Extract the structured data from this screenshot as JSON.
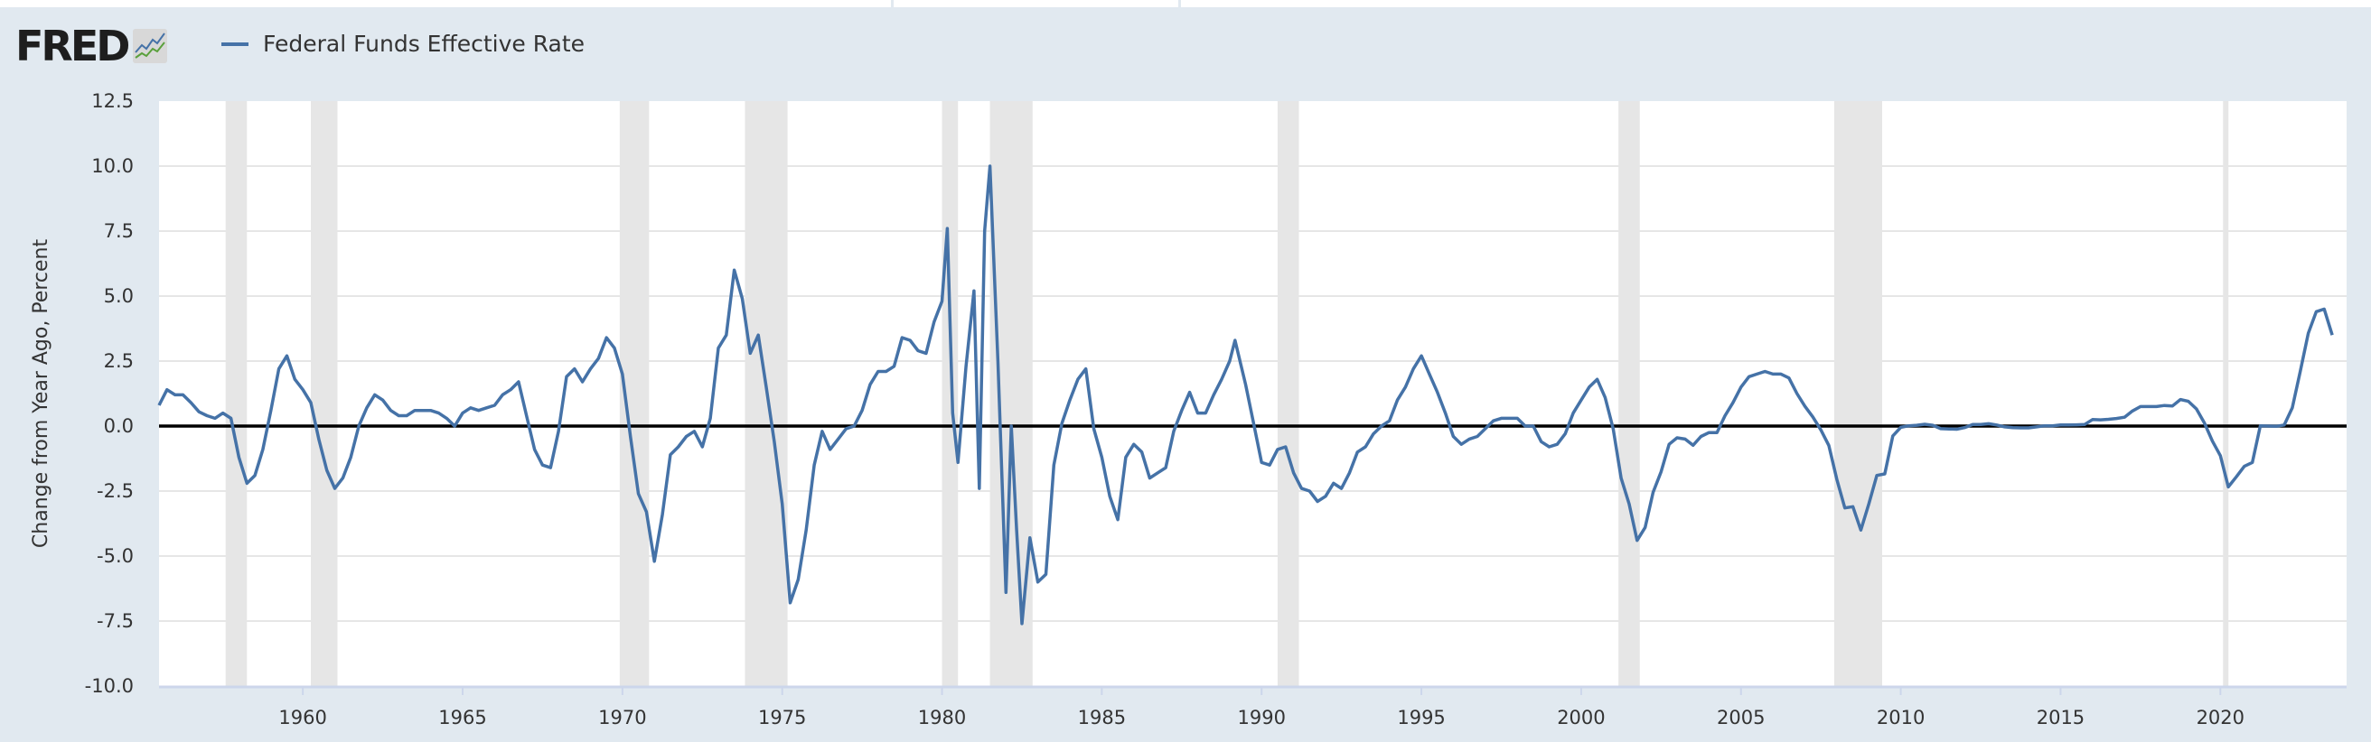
{
  "header": {
    "logo_text": "FRED",
    "legend": [
      {
        "label": "Federal Funds Effective Rate",
        "color": "#4572a7"
      }
    ]
  },
  "colors": {
    "background": "#e1e9f0",
    "plot": "#ffffff",
    "grid": "#e6e6e6",
    "recession": "#e6e6e6",
    "zero_line": "#000000",
    "series": "#4572a7"
  },
  "chart_data": {
    "type": "line",
    "title": "",
    "xlabel": "",
    "ylabel": "Change from Year Ago, Percent",
    "xlim": [
      "1955-07",
      "2023-07"
    ],
    "ylim": [
      -10,
      12.5
    ],
    "yticks": [
      "12.5",
      "10.0",
      "7.5",
      "5.0",
      "2.5",
      "0.0",
      "-2.5",
      "-5.0",
      "-7.5",
      "-10.0"
    ],
    "xticks": [
      "1960",
      "1965",
      "1970",
      "1975",
      "1980",
      "1985",
      "1990",
      "1995",
      "2000",
      "2005",
      "2010",
      "2015",
      "2020"
    ],
    "grid": true,
    "zero_line": true,
    "legend_placement": "top-left",
    "recessions": [
      [
        "1957-08",
        "1958-04"
      ],
      [
        "1960-04",
        "1961-02"
      ],
      [
        "1969-12",
        "1970-11"
      ],
      [
        "1973-11",
        "1975-03"
      ],
      [
        "1980-01",
        "1980-07"
      ],
      [
        "1981-07",
        "1982-11"
      ],
      [
        "1990-07",
        "1991-03"
      ],
      [
        "2001-03",
        "2001-11"
      ],
      [
        "2007-12",
        "2009-06"
      ],
      [
        "2020-02",
        "2020-04"
      ]
    ],
    "series": [
      {
        "name": "Federal Funds Effective Rate",
        "points": [
          [
            "1955-07",
            0.8
          ],
          [
            "1955-10",
            1.4
          ],
          [
            "1956-01",
            1.2
          ],
          [
            "1956-04",
            1.2
          ],
          [
            "1956-07",
            0.9
          ],
          [
            "1956-10",
            0.55
          ],
          [
            "1957-01",
            0.4
          ],
          [
            "1957-04",
            0.3
          ],
          [
            "1957-07",
            0.5
          ],
          [
            "1957-10",
            0.3
          ],
          [
            "1958-01",
            -1.2
          ],
          [
            "1958-04",
            -2.2
          ],
          [
            "1958-07",
            -1.9
          ],
          [
            "1958-10",
            -0.9
          ],
          [
            "1959-01",
            0.6
          ],
          [
            "1959-04",
            2.2
          ],
          [
            "1959-07",
            2.7
          ],
          [
            "1959-10",
            1.8
          ],
          [
            "1960-01",
            1.4
          ],
          [
            "1960-04",
            0.9
          ],
          [
            "1960-07",
            -0.5
          ],
          [
            "1960-10",
            -1.7
          ],
          [
            "1961-01",
            -2.4
          ],
          [
            "1961-04",
            -2.0
          ],
          [
            "1961-07",
            -1.2
          ],
          [
            "1961-10",
            0.0
          ],
          [
            "1962-01",
            0.7
          ],
          [
            "1962-04",
            1.2
          ],
          [
            "1962-07",
            1.0
          ],
          [
            "1962-10",
            0.6
          ],
          [
            "1963-01",
            0.4
          ],
          [
            "1963-04",
            0.4
          ],
          [
            "1963-07",
            0.6
          ],
          [
            "1963-10",
            0.6
          ],
          [
            "1964-01",
            0.6
          ],
          [
            "1964-04",
            0.5
          ],
          [
            "1964-07",
            0.3
          ],
          [
            "1964-10",
            0.0
          ],
          [
            "1965-01",
            0.5
          ],
          [
            "1965-04",
            0.7
          ],
          [
            "1965-07",
            0.6
          ],
          [
            "1965-10",
            0.7
          ],
          [
            "1966-01",
            0.8
          ],
          [
            "1966-04",
            1.2
          ],
          [
            "1966-07",
            1.4
          ],
          [
            "1966-10",
            1.7
          ],
          [
            "1967-01",
            0.4
          ],
          [
            "1967-04",
            -0.9
          ],
          [
            "1967-07",
            -1.5
          ],
          [
            "1967-10",
            -1.6
          ],
          [
            "1968-01",
            -0.2
          ],
          [
            "1968-04",
            1.9
          ],
          [
            "1968-07",
            2.2
          ],
          [
            "1968-10",
            1.7
          ],
          [
            "1969-01",
            2.2
          ],
          [
            "1969-04",
            2.6
          ],
          [
            "1969-07",
            3.4
          ],
          [
            "1969-10",
            3.0
          ],
          [
            "1970-01",
            2.0
          ],
          [
            "1970-04",
            -0.4
          ],
          [
            "1970-07",
            -2.6
          ],
          [
            "1970-10",
            -3.3
          ],
          [
            "1971-01",
            -5.2
          ],
          [
            "1971-04",
            -3.4
          ],
          [
            "1971-07",
            -1.1
          ],
          [
            "1971-10",
            -0.8
          ],
          [
            "1972-01",
            -0.4
          ],
          [
            "1972-04",
            -0.2
          ],
          [
            "1972-07",
            -0.8
          ],
          [
            "1972-10",
            0.3
          ],
          [
            "1973-01",
            3.0
          ],
          [
            "1973-04",
            3.5
          ],
          [
            "1973-07",
            6.0
          ],
          [
            "1973-10",
            4.9
          ],
          [
            "1974-01",
            2.8
          ],
          [
            "1974-04",
            3.5
          ],
          [
            "1974-07",
            1.5
          ],
          [
            "1974-10",
            -0.6
          ],
          [
            "1975-01",
            -3.0
          ],
          [
            "1975-04",
            -6.8
          ],
          [
            "1975-07",
            -5.9
          ],
          [
            "1975-10",
            -4.0
          ],
          [
            "1976-01",
            -1.5
          ],
          [
            "1976-04",
            -0.2
          ],
          [
            "1976-07",
            -0.9
          ],
          [
            "1976-10",
            -0.5
          ],
          [
            "1977-01",
            -0.1
          ],
          [
            "1977-04",
            0.0
          ],
          [
            "1977-07",
            0.6
          ],
          [
            "1977-10",
            1.6
          ],
          [
            "1978-01",
            2.1
          ],
          [
            "1978-04",
            2.1
          ],
          [
            "1978-07",
            2.3
          ],
          [
            "1978-10",
            3.4
          ],
          [
            "1979-01",
            3.3
          ],
          [
            "1979-04",
            2.9
          ],
          [
            "1979-07",
            2.8
          ],
          [
            "1979-10",
            4.0
          ],
          [
            "1980-01",
            4.8
          ],
          [
            "1980-03",
            7.6
          ],
          [
            "1980-05",
            0.5
          ],
          [
            "1980-07",
            -1.4
          ],
          [
            "1980-10",
            2.3
          ],
          [
            "1981-01",
            5.2
          ],
          [
            "1981-03",
            -2.4
          ],
          [
            "1981-05",
            7.5
          ],
          [
            "1981-07",
            10.0
          ],
          [
            "1981-10",
            2.5
          ],
          [
            "1982-01",
            -6.4
          ],
          [
            "1982-03",
            0.0
          ],
          [
            "1982-05",
            -4.0
          ],
          [
            "1982-07",
            -7.6
          ],
          [
            "1982-10",
            -4.3
          ],
          [
            "1983-01",
            -6.0
          ],
          [
            "1983-04",
            -5.7
          ],
          [
            "1983-07",
            -1.5
          ],
          [
            "1983-10",
            0.1
          ],
          [
            "1984-01",
            1.0
          ],
          [
            "1984-04",
            1.8
          ],
          [
            "1984-07",
            2.2
          ],
          [
            "1984-10",
            -0.1
          ],
          [
            "1985-01",
            -1.2
          ],
          [
            "1985-04",
            -2.7
          ],
          [
            "1985-07",
            -3.6
          ],
          [
            "1985-10",
            -1.2
          ],
          [
            "1986-01",
            -0.7
          ],
          [
            "1986-04",
            -1.0
          ],
          [
            "1986-07",
            -2.0
          ],
          [
            "1986-10",
            -1.8
          ],
          [
            "1987-01",
            -1.6
          ],
          [
            "1987-04",
            -0.2
          ],
          [
            "1987-07",
            0.6
          ],
          [
            "1987-10",
            1.3
          ],
          [
            "1988-01",
            0.5
          ],
          [
            "1988-04",
            0.5
          ],
          [
            "1988-07",
            1.2
          ],
          [
            "1988-10",
            1.8
          ],
          [
            "1989-01",
            2.5
          ],
          [
            "1989-03",
            3.3
          ],
          [
            "1989-07",
            1.6
          ],
          [
            "1989-10",
            0.1
          ],
          [
            "1990-01",
            -1.4
          ],
          [
            "1990-04",
            -1.5
          ],
          [
            "1990-07",
            -0.9
          ],
          [
            "1990-10",
            -0.8
          ],
          [
            "1991-01",
            -1.8
          ],
          [
            "1991-04",
            -2.4
          ],
          [
            "1991-07",
            -2.5
          ],
          [
            "1991-10",
            -2.9
          ],
          [
            "1992-01",
            -2.7
          ],
          [
            "1992-04",
            -2.2
          ],
          [
            "1992-07",
            -2.4
          ],
          [
            "1992-10",
            -1.8
          ],
          [
            "1993-01",
            -1.0
          ],
          [
            "1993-04",
            -0.8
          ],
          [
            "1993-07",
            -0.3
          ],
          [
            "1993-10",
            0.0
          ],
          [
            "1994-01",
            0.2
          ],
          [
            "1994-04",
            1.0
          ],
          [
            "1994-07",
            1.5
          ],
          [
            "1994-10",
            2.2
          ],
          [
            "1995-01",
            2.7
          ],
          [
            "1995-04",
            2.0
          ],
          [
            "1995-07",
            1.3
          ],
          [
            "1995-10",
            0.5
          ],
          [
            "1996-01",
            -0.4
          ],
          [
            "1996-04",
            -0.7
          ],
          [
            "1996-07",
            -0.5
          ],
          [
            "1996-10",
            -0.4
          ],
          [
            "1997-01",
            -0.1
          ],
          [
            "1997-04",
            0.2
          ],
          [
            "1997-07",
            0.3
          ],
          [
            "1997-10",
            0.3
          ],
          [
            "1998-01",
            0.3
          ],
          [
            "1998-04",
            0.0
          ],
          [
            "1998-07",
            0.0
          ],
          [
            "1998-10",
            -0.6
          ],
          [
            "1999-01",
            -0.8
          ],
          [
            "1999-04",
            -0.7
          ],
          [
            "1999-07",
            -0.3
          ],
          [
            "1999-10",
            0.5
          ],
          [
            "2000-01",
            1.0
          ],
          [
            "2000-04",
            1.5
          ],
          [
            "2000-07",
            1.8
          ],
          [
            "2000-10",
            1.1
          ],
          [
            "2001-01",
            -0.1
          ],
          [
            "2001-04",
            -2.0
          ],
          [
            "2001-07",
            -3.0
          ],
          [
            "2001-10",
            -4.4
          ],
          [
            "2002-01",
            -3.9
          ],
          [
            "2002-04",
            -2.55
          ],
          [
            "2002-07",
            -1.76
          ],
          [
            "2002-10",
            -0.7
          ],
          [
            "2003-01",
            -0.45
          ],
          [
            "2003-04",
            -0.5
          ],
          [
            "2003-07",
            -0.74
          ],
          [
            "2003-10",
            -0.4
          ],
          [
            "2004-01",
            -0.25
          ],
          [
            "2004-04",
            -0.25
          ],
          [
            "2004-07",
            0.4
          ],
          [
            "2004-10",
            0.9
          ],
          [
            "2005-01",
            1.5
          ],
          [
            "2005-04",
            1.9
          ],
          [
            "2005-07",
            2.0
          ],
          [
            "2005-10",
            2.1
          ],
          [
            "2006-01",
            2.0
          ],
          [
            "2006-04",
            2.0
          ],
          [
            "2006-07",
            1.85
          ],
          [
            "2006-10",
            1.25
          ],
          [
            "2007-01",
            0.76
          ],
          [
            "2007-04",
            0.35
          ],
          [
            "2007-07",
            -0.15
          ],
          [
            "2007-10",
            -0.75
          ],
          [
            "2008-01",
            -2.06
          ],
          [
            "2008-04",
            -3.15
          ],
          [
            "2008-07",
            -3.1
          ],
          [
            "2008-10",
            -4.0
          ],
          [
            "2009-01",
            -3.0
          ],
          [
            "2009-04",
            -1.9
          ],
          [
            "2009-07",
            -1.84
          ],
          [
            "2009-10",
            -0.38
          ],
          [
            "2010-01",
            -0.05
          ],
          [
            "2010-04",
            0.01
          ],
          [
            "2010-07",
            0.03
          ],
          [
            "2010-10",
            0.07
          ],
          [
            "2011-01",
            0.03
          ],
          [
            "2011-04",
            -0.1
          ],
          [
            "2011-07",
            -0.11
          ],
          [
            "2011-10",
            -0.12
          ],
          [
            "2012-01",
            -0.06
          ],
          [
            "2012-04",
            0.06
          ],
          [
            "2012-07",
            0.06
          ],
          [
            "2012-10",
            0.09
          ],
          [
            "2013-01",
            0.04
          ],
          [
            "2013-04",
            -0.03
          ],
          [
            "2013-07",
            -0.06
          ],
          [
            "2013-10",
            -0.07
          ],
          [
            "2014-01",
            -0.07
          ],
          [
            "2014-04",
            -0.03
          ],
          [
            "2014-07",
            0.01
          ],
          [
            "2014-10",
            0.01
          ],
          [
            "2015-01",
            0.04
          ],
          [
            "2015-04",
            0.04
          ],
          [
            "2015-07",
            0.05
          ],
          [
            "2015-10",
            0.06
          ],
          [
            "2016-01",
            0.25
          ],
          [
            "2016-04",
            0.24
          ],
          [
            "2016-07",
            0.26
          ],
          [
            "2016-10",
            0.29
          ],
          [
            "2017-01",
            0.34
          ],
          [
            "2017-04",
            0.58
          ],
          [
            "2017-07",
            0.75
          ],
          [
            "2017-10",
            0.75
          ],
          [
            "2018-01",
            0.75
          ],
          [
            "2018-04",
            0.79
          ],
          [
            "2018-07",
            0.77
          ],
          [
            "2018-10",
            1.02
          ],
          [
            "2019-01",
            0.95
          ],
          [
            "2019-04",
            0.66
          ],
          [
            "2019-07",
            0.12
          ],
          [
            "2019-10",
            -0.58
          ],
          [
            "2020-01",
            -1.14
          ],
          [
            "2020-04",
            -2.34
          ],
          [
            "2020-07",
            -1.95
          ],
          [
            "2020-10",
            -1.55
          ],
          [
            "2021-01",
            -1.4
          ],
          [
            "2021-04",
            0.01
          ],
          [
            "2021-07",
            0.0
          ],
          [
            "2021-10",
            -0.01
          ],
          [
            "2022-01",
            0.04
          ],
          [
            "2022-04",
            0.7
          ],
          [
            "2022-07",
            2.1
          ],
          [
            "2022-10",
            3.57
          ],
          [
            "2023-01",
            4.4
          ],
          [
            "2023-04",
            4.5
          ],
          [
            "2023-07",
            3.5
          ]
        ]
      }
    ]
  }
}
